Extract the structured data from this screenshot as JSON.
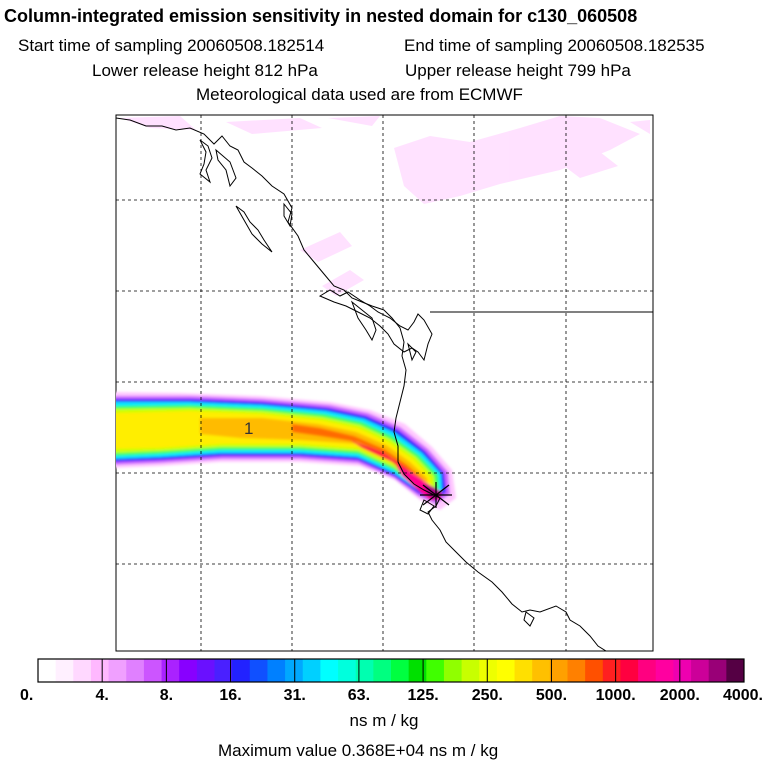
{
  "header": {
    "title": "Column-integrated emission sensitivity in nested domain for c130_060508",
    "start_label": "Start time of sampling 20060508.182514",
    "end_label": "End time of sampling 20060508.182535",
    "lower_label": "Lower release height  812 hPa",
    "upper_label": "Upper release height  799 hPa",
    "met_label": "Meteorological data used are from ECMWF"
  },
  "footer": {
    "unit_label": "ns m / kg",
    "max_label": "Maximum value  0.368E+04 ns m / kg"
  },
  "chart_data": {
    "type": "heatmap",
    "title": "Column-integrated emission sensitivity in nested domain for c130_060508",
    "units": "ns m / kg",
    "colorbar_ticks": [
      "0.",
      "4.",
      "8.",
      "16.",
      "31.",
      "63.",
      "125.",
      "250.",
      "500.",
      "1000.",
      "2000.",
      "4000."
    ],
    "colorbar_colors": [
      "#ffffff",
      "#fff0ff",
      "#ffd8ff",
      "#ffb8ff",
      "#f0a0ff",
      "#e080ff",
      "#cc55ff",
      "#aa22ff",
      "#8800ff",
      "#6a10ff",
      "#4a20ff",
      "#2222ff",
      "#1050ff",
      "#0080ff",
      "#00a8ff",
      "#00d0ff",
      "#00ffff",
      "#00ffdd",
      "#00ffb0",
      "#00ff80",
      "#00ff40",
      "#00e000",
      "#40ff00",
      "#90ff00",
      "#c8ff00",
      "#eeff00",
      "#ffff00",
      "#ffe000",
      "#ffc000",
      "#ffa000",
      "#ff8000",
      "#ff5000",
      "#ff2020",
      "#ff0040",
      "#ff0080",
      "#ff00a0",
      "#ee00b0",
      "#cc0099",
      "#990077",
      "#550044"
    ],
    "maximum_value": 3680,
    "release_marker": "+",
    "plume_label": "1",
    "grid": true
  }
}
